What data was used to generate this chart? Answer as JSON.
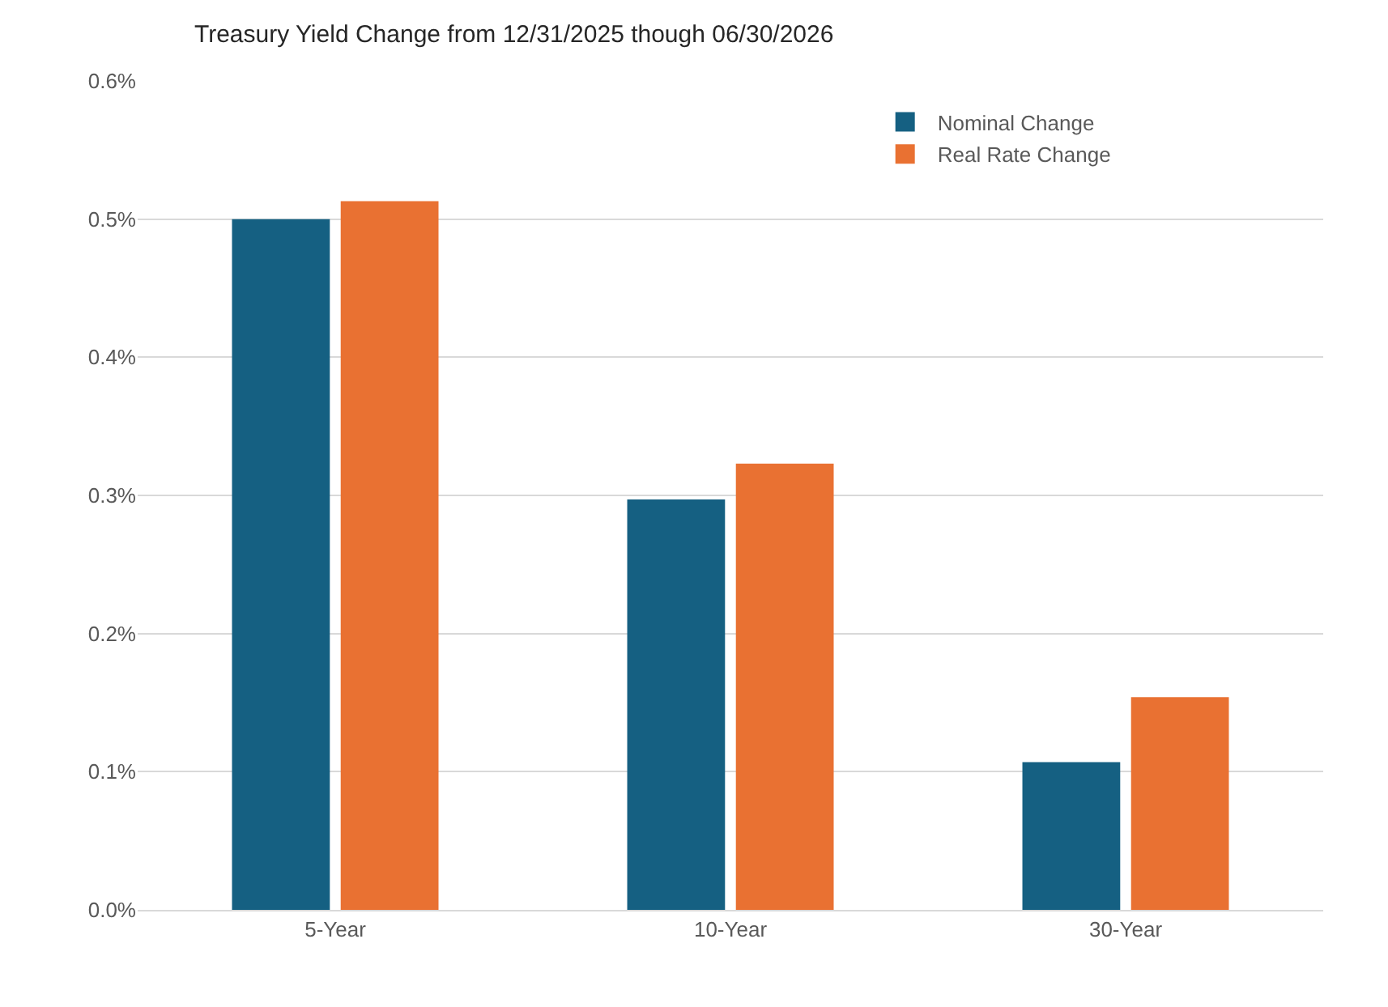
{
  "chart_data": {
    "type": "bar",
    "title": "Treasury Yield Change from 12/31/2025 though 06/30/2026",
    "categories": [
      "5-Year",
      "10-Year",
      "30-Year"
    ],
    "series": [
      {
        "name": "Nominal Change",
        "color": "#156082",
        "values": [
          0.5,
          0.297,
          0.107
        ]
      },
      {
        "name": "Real Rate Change",
        "color": "#e97132",
        "values": [
          0.513,
          0.323,
          0.154
        ]
      }
    ],
    "ylim": [
      0,
      0.6
    ],
    "yticks": [
      {
        "value": 0,
        "label": "0.0%"
      },
      {
        "value": 0.1,
        "label": "0.1%"
      },
      {
        "value": 0.2,
        "label": "0.2%"
      },
      {
        "value": 0.3,
        "label": "0.3%"
      },
      {
        "value": 0.4,
        "label": "0.4%"
      },
      {
        "value": 0.5,
        "label": "0.5%"
      },
      {
        "value": 0.6,
        "label": "0.6%"
      }
    ],
    "grid": "y",
    "legend": "top right"
  }
}
